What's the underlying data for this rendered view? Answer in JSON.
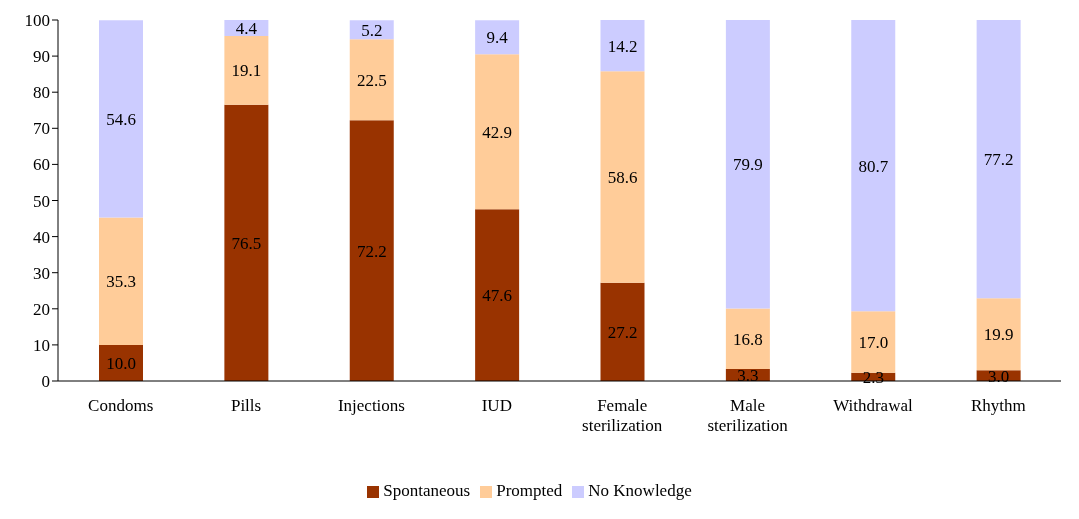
{
  "chart_data": {
    "type": "bar",
    "stacked": true,
    "categories": [
      "Condoms",
      "Pills",
      "Injections",
      "IUD",
      "Female sterilization",
      "Male sterilization",
      "Withdrawal",
      "Rhythm"
    ],
    "series": [
      {
        "name": "Spontaneous",
        "color": "#993300",
        "values": [
          10.0,
          76.5,
          72.2,
          47.6,
          27.2,
          3.3,
          2.3,
          3.0
        ],
        "value_labels": [
          "10.0",
          "76.5",
          "72.2",
          "47.6",
          "27.2",
          "3.3",
          "2.3",
          "3.0"
        ]
      },
      {
        "name": "Prompted",
        "color": "#ffcc99",
        "values": [
          35.3,
          19.1,
          22.5,
          42.9,
          58.6,
          16.8,
          17.0,
          19.9
        ],
        "value_labels": [
          "35.3",
          "19.1",
          "22.5",
          "42.9",
          "58.6",
          "16.8",
          "17.0",
          "19.9"
        ]
      },
      {
        "name": "No Knowledge",
        "color": "#ccccff",
        "values": [
          54.6,
          4.4,
          5.2,
          9.4,
          14.2,
          79.9,
          80.7,
          77.2
        ],
        "value_labels": [
          "54.6",
          "4.4",
          "5.2",
          "9.4",
          "14.2",
          "79.9",
          "80.7",
          "77.2"
        ]
      }
    ],
    "ylim": [
      0,
      100
    ],
    "yticks": [
      0,
      10,
      20,
      30,
      40,
      50,
      60,
      70,
      80,
      90,
      100
    ],
    "grid": false,
    "legend": "bottom"
  }
}
